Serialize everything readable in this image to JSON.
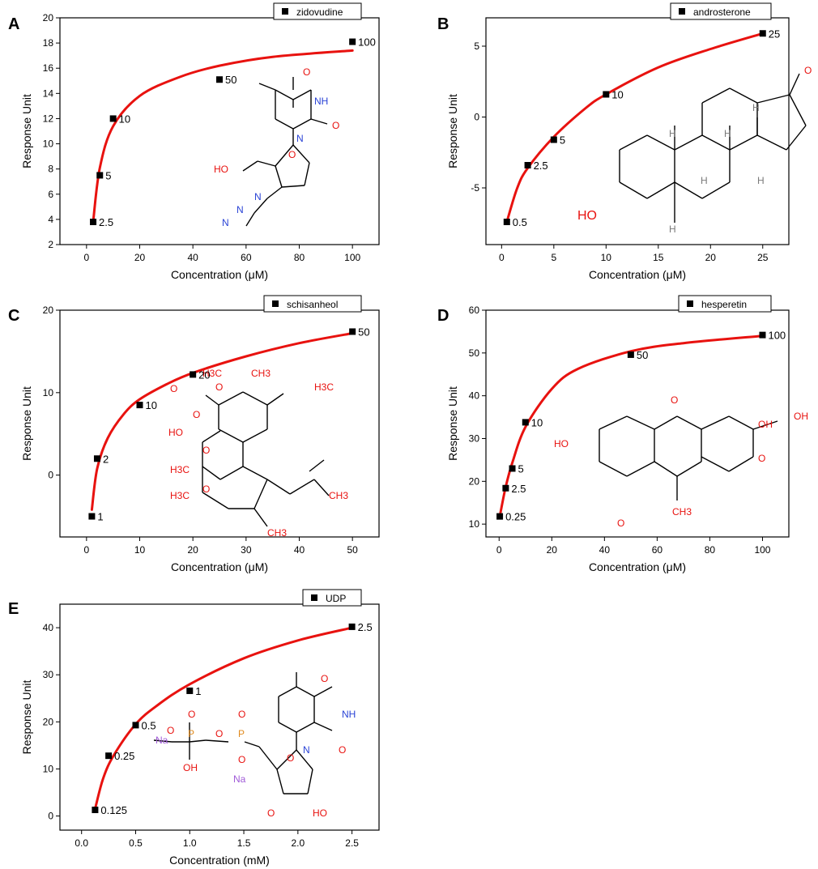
{
  "chart_data": [
    {
      "panel": "A",
      "type": "scatter",
      "title": "",
      "xlabel": "Concentration (μM)",
      "ylabel": "Response Unit",
      "xlim": [
        -10,
        110
      ],
      "ylim": [
        2,
        20
      ],
      "xticks": [
        0,
        20,
        40,
        60,
        80,
        100
      ],
      "yticks": [
        2,
        4,
        6,
        8,
        10,
        12,
        14,
        16,
        18,
        20
      ],
      "xtick_labels": [
        "0",
        "20",
        "40",
        "60",
        "80",
        "100"
      ],
      "ytick_labels": [
        "2",
        "4",
        "6",
        "8",
        "10",
        "12",
        "14",
        "16",
        "18",
        "20"
      ],
      "grid": false,
      "legend_position": "top-right",
      "series": [
        {
          "name": "zidovudine",
          "x": [
            2.5,
            5,
            10,
            50,
            100
          ],
          "y": [
            3.8,
            7.5,
            12.0,
            15.1,
            18.1
          ],
          "point_labels": [
            "2.5",
            "5",
            "10",
            "50",
            "100"
          ]
        }
      ],
      "fit": {
        "x": [
          2.5,
          5,
          10,
          20,
          35,
          50,
          70,
          100
        ],
        "y": [
          3.8,
          8.1,
          11.4,
          13.8,
          15.3,
          16.2,
          16.9,
          17.4
        ]
      },
      "molecule": {
        "name": "zidovudine",
        "atom_labels": [
          "O",
          "NH",
          "O",
          "N",
          "HO",
          "O",
          "N",
          "N",
          "N"
        ]
      }
    },
    {
      "panel": "B",
      "type": "scatter",
      "title": "",
      "xlabel": "Concentration (μM)",
      "ylabel": "Response Unit",
      "xlim": [
        -1.5,
        27.5
      ],
      "ylim": [
        -9,
        7
      ],
      "xticks": [
        0,
        5,
        10,
        15,
        20,
        25
      ],
      "yticks": [
        -5,
        0,
        5
      ],
      "xtick_labels": [
        "0",
        "5",
        "10",
        "15",
        "20",
        "25"
      ],
      "ytick_labels": [
        "-5",
        "0",
        "5"
      ],
      "grid": false,
      "legend_position": "top-right",
      "series": [
        {
          "name": "androsterone",
          "x": [
            0.5,
            2.5,
            5,
            10,
            25
          ],
          "y": [
            -7.4,
            -3.4,
            -1.6,
            1.6,
            5.9
          ],
          "point_labels": [
            "0.5",
            "2.5",
            "5",
            "10",
            "25"
          ]
        }
      ],
      "fit": {
        "x": [
          0.5,
          1.5,
          2.5,
          5,
          8,
          10,
          15,
          20,
          25
        ],
        "y": [
          -7.4,
          -5.0,
          -3.6,
          -1.4,
          0.6,
          1.6,
          3.5,
          4.8,
          5.9
        ]
      },
      "molecule": {
        "name": "androsterone",
        "atom_labels": [
          "HO",
          "O",
          "H",
          "H",
          "H",
          "H",
          "H",
          "H"
        ]
      }
    },
    {
      "panel": "C",
      "type": "scatter",
      "title": "",
      "xlabel": "Concentration (μM)",
      "ylabel": "Response Unit",
      "xlim": [
        -5,
        55
      ],
      "ylim": [
        -7.5,
        20
      ],
      "xticks": [
        0,
        10,
        20,
        30,
        40,
        50
      ],
      "yticks": [
        0,
        10,
        20
      ],
      "xtick_labels": [
        "0",
        "10",
        "20",
        "30",
        "40",
        "50"
      ],
      "ytick_labels": [
        "0",
        "10",
        "20"
      ],
      "grid": false,
      "legend_position": "top-right",
      "series": [
        {
          "name": "schisanheol",
          "x": [
            1,
            2,
            10,
            20,
            50
          ],
          "y": [
            -5.0,
            2.0,
            8.5,
            12.2,
            17.4
          ],
          "point_labels": [
            "1",
            "2",
            "10",
            "20",
            "50"
          ]
        }
      ],
      "fit": {
        "x": [
          1,
          2,
          4,
          7,
          10,
          15,
          20,
          30,
          40,
          50
        ],
        "y": [
          -4.2,
          0.8,
          4.5,
          7.4,
          9.2,
          11.0,
          12.4,
          14.4,
          16.0,
          17.2
        ]
      },
      "molecule": {
        "name": "schisanheol",
        "atom_labels": [
          "H3C",
          "O",
          "O",
          "CH3",
          "H3C",
          "O",
          "HO",
          "O",
          "H3C",
          "O",
          "H3C",
          "CH3",
          "CH3"
        ]
      }
    },
    {
      "panel": "D",
      "type": "scatter",
      "title": "",
      "xlabel": "Concentration (μM)",
      "ylabel": "Response Unit",
      "xlim": [
        -5,
        110
      ],
      "ylim": [
        7,
        60
      ],
      "xticks": [
        0,
        20,
        40,
        60,
        80,
        100
      ],
      "yticks": [
        10,
        20,
        30,
        40,
        50,
        60
      ],
      "xtick_labels": [
        "0",
        "20",
        "40",
        "60",
        "80",
        "100"
      ],
      "ytick_labels": [
        "10",
        "20",
        "30",
        "40",
        "50",
        "60"
      ],
      "grid": false,
      "legend_position": "top-right",
      "series": [
        {
          "name": "hesperetin",
          "x": [
            0.25,
            2.5,
            5,
            10,
            50,
            100
          ],
          "y": [
            11.8,
            18.4,
            23.0,
            33.8,
            49.6,
            54.2
          ],
          "point_labels": [
            "0.25",
            "2.5",
            "5",
            "10",
            "50",
            "100"
          ]
        }
      ],
      "fit": {
        "x": [
          0.25,
          2.5,
          5,
          10,
          20,
          30,
          50,
          70,
          100
        ],
        "y": [
          11.8,
          18.7,
          24.3,
          32.7,
          41.6,
          46.3,
          50.4,
          52.3,
          54.0
        ]
      },
      "molecule": {
        "name": "hesperetin",
        "atom_labels": [
          "HO",
          "O",
          "O",
          "CH3",
          "OH",
          "OH",
          "O"
        ]
      }
    },
    {
      "panel": "E",
      "type": "scatter",
      "title": "",
      "xlabel": "Concentration (mM)",
      "ylabel": "Response Unit",
      "xlim": [
        -0.2,
        2.75
      ],
      "ylim": [
        -3,
        45
      ],
      "xticks": [
        0.0,
        0.5,
        1.0,
        1.5,
        2.0,
        2.5
      ],
      "yticks": [
        0,
        10,
        20,
        30,
        40
      ],
      "xtick_labels": [
        "0.0",
        "0.5",
        "1.0",
        "1.5",
        "2.0",
        "2.5"
      ],
      "ytick_labels": [
        "0",
        "10",
        "20",
        "30",
        "40"
      ],
      "grid": false,
      "legend_position": "top-right",
      "series": [
        {
          "name": "UDP",
          "x": [
            0.125,
            0.25,
            0.5,
            1,
            2.5
          ],
          "y": [
            1.3,
            12.8,
            19.3,
            26.6,
            40.2
          ],
          "point_labels": [
            "0.125",
            "0.25",
            "0.5",
            "1",
            "2.5"
          ]
        }
      ],
      "fit": {
        "x": [
          0.125,
          0.2,
          0.3,
          0.5,
          0.7,
          1.0,
          1.5,
          2.0,
          2.5
        ],
        "y": [
          1.5,
          8.0,
          13.0,
          19.5,
          23.5,
          28.0,
          33.5,
          37.3,
          40.0
        ]
      },
      "molecule": {
        "name": "UDP",
        "atom_labels": [
          "O",
          "NH",
          "O",
          "N",
          "Na",
          "O",
          "P",
          "O",
          "O",
          "P",
          "O",
          "O",
          "OH",
          "O",
          "Na",
          "O",
          "HO",
          "OH"
        ]
      }
    }
  ],
  "style": {
    "fit_color": "#e8120f",
    "point_color": "#000000",
    "oxygen_color": "#e8120f",
    "nitrogen_color": "#2a43d6",
    "sodium_color": "#a05ad8",
    "phosphorus_color": "#e08a1e",
    "hydrogen_color": "#7a7a7a"
  }
}
